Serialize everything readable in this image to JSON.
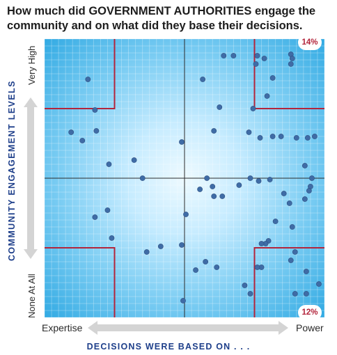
{
  "title": "How much did GOVERNMENT AUTHORITIES engage the community and on what did they base their decisions.",
  "y_axis": {
    "label": "COMMUNITY ENGAGEMENT LEVELS",
    "top_label": "Very High",
    "bottom_label": "None At All"
  },
  "x_axis": {
    "label": "DECISIONS WERE BASED ON . . .",
    "left_label": "Expertise",
    "right_label": "Power"
  },
  "corner_labels": {
    "top_right": "14%",
    "bottom_right": "12%"
  },
  "colors": {
    "accent_red": "#b3243b",
    "point": "#3f6ca6",
    "background_center": "#e9f7ff",
    "background_edge": "#3aaee4",
    "axis_label_blue": "#1e3f8a"
  },
  "chart_data": {
    "type": "scatter",
    "xlim": [
      -1,
      1
    ],
    "ylim": [
      -1,
      1
    ],
    "grid": true,
    "quadrant_regions": [
      {
        "corner": "top-left",
        "x_boundary": -0.5,
        "y_boundary": 0.5
      },
      {
        "corner": "top-right",
        "x_boundary": 0.5,
        "y_boundary": 0.5,
        "share": "14%"
      },
      {
        "corner": "bottom-left",
        "x_boundary": -0.5,
        "y_boundary": -0.5
      },
      {
        "corner": "bottom-right",
        "x_boundary": 0.5,
        "y_boundary": -0.5,
        "share": "12%"
      }
    ],
    "points": [
      {
        "x": -0.69,
        "y": 0.71
      },
      {
        "x": -0.64,
        "y": 0.49
      },
      {
        "x": -0.81,
        "y": 0.33
      },
      {
        "x": -0.73,
        "y": 0.27
      },
      {
        "x": -0.63,
        "y": 0.34
      },
      {
        "x": -0.54,
        "y": 0.1
      },
      {
        "x": -0.36,
        "y": 0.13
      },
      {
        "x": -0.3,
        "y": 0.0
      },
      {
        "x": -0.55,
        "y": -0.23
      },
      {
        "x": -0.64,
        "y": -0.28
      },
      {
        "x": -0.52,
        "y": -0.43
      },
      {
        "x": -0.27,
        "y": -0.53
      },
      {
        "x": -0.17,
        "y": -0.49
      },
      {
        "x": -0.02,
        "y": -0.48
      },
      {
        "x": -0.02,
        "y": 0.26
      },
      {
        "x": 0.01,
        "y": -0.26
      },
      {
        "x": -0.01,
        "y": -0.88
      },
      {
        "x": 0.28,
        "y": 0.88
      },
      {
        "x": 0.35,
        "y": 0.88
      },
      {
        "x": 0.13,
        "y": 0.71
      },
      {
        "x": 0.25,
        "y": 0.51
      },
      {
        "x": 0.21,
        "y": 0.34
      },
      {
        "x": 0.16,
        "y": 0.0
      },
      {
        "x": 0.11,
        "y": -0.08
      },
      {
        "x": 0.2,
        "y": -0.06
      },
      {
        "x": 0.21,
        "y": -0.13
      },
      {
        "x": 0.27,
        "y": -0.13
      },
      {
        "x": 0.39,
        "y": -0.05
      },
      {
        "x": 0.47,
        "y": 0.0
      },
      {
        "x": 0.53,
        "y": -0.02
      },
      {
        "x": 0.61,
        "y": -0.01
      },
      {
        "x": 0.15,
        "y": -0.6
      },
      {
        "x": 0.08,
        "y": -0.66
      },
      {
        "x": 0.23,
        "y": -0.64
      },
      {
        "x": 0.43,
        "y": -0.77
      },
      {
        "x": 0.47,
        "y": -0.83
      },
      {
        "x": 0.52,
        "y": 0.88
      },
      {
        "x": 0.51,
        "y": 0.82
      },
      {
        "x": 0.57,
        "y": 0.86
      },
      {
        "x": 0.49,
        "y": 0.5
      },
      {
        "x": 0.63,
        "y": 0.72
      },
      {
        "x": 0.59,
        "y": 0.59
      },
      {
        "x": 0.46,
        "y": 0.33
      },
      {
        "x": 0.54,
        "y": 0.29
      },
      {
        "x": 0.63,
        "y": 0.3
      },
      {
        "x": 0.69,
        "y": 0.3
      },
      {
        "x": 0.76,
        "y": 0.89
      },
      {
        "x": 0.77,
        "y": 0.86
      },
      {
        "x": 0.76,
        "y": 0.82
      },
      {
        "x": 0.8,
        "y": 0.29
      },
      {
        "x": 0.88,
        "y": 0.29
      },
      {
        "x": 0.93,
        "y": 0.3
      },
      {
        "x": 0.86,
        "y": 0.09
      },
      {
        "x": 0.91,
        "y": 0.0
      },
      {
        "x": 0.9,
        "y": -0.06
      },
      {
        "x": 0.89,
        "y": -0.09
      },
      {
        "x": 0.71,
        "y": -0.11
      },
      {
        "x": 0.86,
        "y": -0.15
      },
      {
        "x": 0.75,
        "y": -0.18
      },
      {
        "x": 0.65,
        "y": -0.31
      },
      {
        "x": 0.77,
        "y": -0.35
      },
      {
        "x": 0.6,
        "y": -0.45
      },
      {
        "x": 0.58,
        "y": -0.47
      },
      {
        "x": 0.55,
        "y": -0.47
      },
      {
        "x": 0.55,
        "y": -0.64
      },
      {
        "x": 0.52,
        "y": -0.64
      },
      {
        "x": 0.79,
        "y": -0.53
      },
      {
        "x": 0.76,
        "y": -0.59
      },
      {
        "x": 0.87,
        "y": -0.67
      },
      {
        "x": 0.96,
        "y": -0.76
      },
      {
        "x": 0.79,
        "y": -0.83
      },
      {
        "x": 0.87,
        "y": -0.83
      }
    ]
  }
}
